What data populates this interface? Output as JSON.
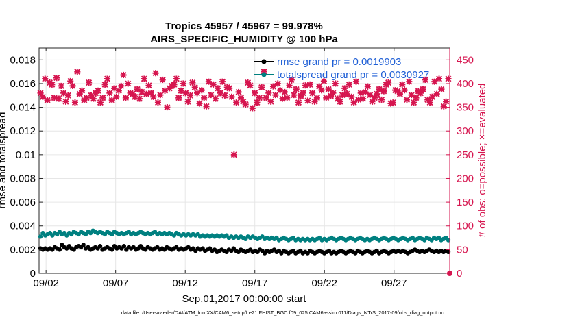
{
  "chart_data": {
    "type": "line",
    "title": "Tropics 45957 / 45967 = 99.978%",
    "subtitle": "AIRS_SPECIFIC_HUMIDITY @ 100 hPa",
    "xlabel": "Sep.01,2017 00:00:00 start",
    "ylabel": "rmse and totalspread",
    "ylabel_right": "# of obs: o=possible; ×=evaluated",
    "footnote": "data file: /Users/raeder/DAI/ATM_forcXX/CAM6_setup/f.e21.FHIST_BGC.f09_025.CAM6assim.011/Diags_NTrS_2017-09/obs_diag_output.nc",
    "xlim": [
      1.5,
      31.0
    ],
    "ylim": [
      0,
      0.019
    ],
    "ylim_right": [
      0,
      475
    ],
    "x_ticks": [
      2,
      7,
      12,
      17,
      22,
      27
    ],
    "x_tick_labels": [
      "09/02",
      "09/07",
      "09/12",
      "09/17",
      "09/22",
      "09/27"
    ],
    "y_ticks": [
      0,
      0.002,
      0.004,
      0.006,
      0.008,
      0.01,
      0.012,
      0.014,
      0.016,
      0.018
    ],
    "y_tick_labels": [
      "0",
      "0.002",
      "0.004",
      "0.006",
      "0.008",
      "0.01",
      "0.012",
      "0.014",
      "0.016",
      "0.018"
    ],
    "y_ticks_right": [
      0,
      50,
      100,
      150,
      200,
      250,
      300,
      350,
      400,
      450
    ],
    "y_tick_labels_right": [
      "0",
      "50",
      "100",
      "150",
      "200",
      "250",
      "300",
      "350",
      "400",
      "450"
    ],
    "grid": true,
    "legend_position": "top-right",
    "series": [
      {
        "name": "rmse grand pr = 0.0019903",
        "color": "#000000",
        "axis": "left",
        "marker": "circle",
        "values": [
          0.0021,
          0.002,
          0.0021,
          0.002,
          0.0021,
          0.002,
          0.0022,
          0.0021,
          0.002,
          0.0024,
          0.0022,
          0.0021,
          0.0023,
          0.0021,
          0.002,
          0.0022,
          0.0023,
          0.0022,
          0.0024,
          0.0021,
          0.0022,
          0.002,
          0.0021,
          0.0022,
          0.0021,
          0.0023,
          0.002,
          0.0021,
          0.0022,
          0.0021,
          0.002,
          0.0023,
          0.0021,
          0.0022,
          0.0021,
          0.0023,
          0.002,
          0.0022,
          0.0021,
          0.0022,
          0.002,
          0.0021,
          0.0023,
          0.0021,
          0.002,
          0.0022,
          0.0021,
          0.002,
          0.0021,
          0.0022,
          0.002,
          0.0021,
          0.002,
          0.0022,
          0.0021,
          0.002,
          0.0021,
          0.0022,
          0.002,
          0.0021,
          0.002,
          0.0021,
          0.0022,
          0.002,
          0.0021,
          0.0019,
          0.0021,
          0.002,
          0.0021,
          0.0019,
          0.002,
          0.0021,
          0.0019,
          0.002,
          0.0018,
          0.0019,
          0.002,
          0.0019,
          0.0018,
          0.002,
          0.0019,
          0.0021,
          0.0019,
          0.0018,
          0.002,
          0.0019,
          0.0018,
          0.0019,
          0.002,
          0.0018,
          0.0019,
          0.0018,
          0.002,
          0.0019,
          0.0017,
          0.0019,
          0.0018,
          0.0019,
          0.002,
          0.0018,
          0.0019,
          0.0017,
          0.0019,
          0.0018,
          0.0017,
          0.0018,
          0.0019,
          0.0017,
          0.0018,
          0.0019,
          0.0017,
          0.0018,
          0.0017,
          0.0019,
          0.0018,
          0.0017,
          0.0018,
          0.0019,
          0.0018,
          0.0017,
          0.0018,
          0.0019,
          0.0017,
          0.0018,
          0.0017,
          0.0018,
          0.0019,
          0.0018,
          0.0017,
          0.0018,
          0.0019,
          0.0018,
          0.0017,
          0.0019,
          0.0018,
          0.0017,
          0.0018,
          0.0019,
          0.0018,
          0.0017,
          0.0018,
          0.0019,
          0.0017,
          0.0018,
          0.0019,
          0.0018,
          0.0017,
          0.0018,
          0.0019,
          0.0018,
          0.0019,
          0.0018,
          0.0019,
          0.0018,
          0.0017,
          0.0018,
          0.0019,
          0.002,
          0.0019,
          0.0018,
          0.0019,
          0.0018,
          0.0019,
          0.002,
          0.0019,
          0.0018,
          0.0019,
          0.0018,
          0.0019,
          0.0018,
          0.0019,
          0.0018
        ]
      },
      {
        "name": "totalspread grand pr = 0.0030927",
        "color": "#008080",
        "axis": "left",
        "marker": "circle",
        "values": [
          0.0031,
          0.0034,
          0.0032,
          0.0033,
          0.0034,
          0.0032,
          0.0034,
          0.0033,
          0.0035,
          0.0033,
          0.0034,
          0.0032,
          0.0034,
          0.0033,
          0.0035,
          0.0034,
          0.0033,
          0.0035,
          0.0034,
          0.0033,
          0.0035,
          0.0034,
          0.0036,
          0.0035,
          0.0034,
          0.0035,
          0.0034,
          0.0033,
          0.0035,
          0.0034,
          0.0033,
          0.0035,
          0.0034,
          0.0033,
          0.0034,
          0.0033,
          0.0034,
          0.0035,
          0.0033,
          0.0034,
          0.0033,
          0.0034,
          0.0035,
          0.0034,
          0.0033,
          0.0034,
          0.0033,
          0.0034,
          0.0035,
          0.0033,
          0.0034,
          0.0033,
          0.0034,
          0.0033,
          0.0034,
          0.0033,
          0.0032,
          0.0034,
          0.0033,
          0.0032,
          0.0033,
          0.0032,
          0.0033,
          0.0032,
          0.0033,
          0.0032,
          0.0033,
          0.0031,
          0.0032,
          0.0031,
          0.0032,
          0.0031,
          0.0032,
          0.0031,
          0.0032,
          0.0031,
          0.0032,
          0.0031,
          0.0032,
          0.003,
          0.0031,
          0.003,
          0.0031,
          0.003,
          0.0031,
          0.003,
          0.0029,
          0.0031,
          0.003,
          0.0031,
          0.003,
          0.0029,
          0.003,
          0.0031,
          0.0029,
          0.003,
          0.0029,
          0.003,
          0.0029,
          0.003,
          0.0028,
          0.0029,
          0.003,
          0.0029,
          0.0028,
          0.0029,
          0.003,
          0.0028,
          0.0029,
          0.0028,
          0.0029,
          0.0028,
          0.0029,
          0.0028,
          0.0029,
          0.0028,
          0.0029,
          0.003,
          0.0028,
          0.0029,
          0.0028,
          0.0029,
          0.003,
          0.0029,
          0.0028,
          0.0029,
          0.003,
          0.0029,
          0.0028,
          0.0029,
          0.003,
          0.0029,
          0.0028,
          0.0029,
          0.003,
          0.0029,
          0.0028,
          0.0029,
          0.0028,
          0.0029,
          0.003,
          0.0029,
          0.0028,
          0.0029,
          0.003,
          0.0029,
          0.0028,
          0.0029,
          0.003,
          0.0029,
          0.0028,
          0.0029,
          0.003,
          0.0029,
          0.0028,
          0.0029,
          0.003,
          0.0028,
          0.0029,
          0.003,
          0.0029,
          0.0028,
          0.003,
          0.0029,
          0.0028,
          0.003,
          0.0029,
          0.003,
          0.0028,
          0.0029,
          0.003,
          0.0028
        ]
      },
      {
        "name": "# of obs evaluated",
        "color": "#d6154f",
        "axis": "right",
        "marker": "x",
        "values": [
          380,
          372,
          410,
          365,
          402,
          398,
          370,
          412,
          368,
          395,
          380,
          362,
          375,
          405,
          395,
          360,
          425,
          378,
          385,
          365,
          370,
          402,
          375,
          368,
          380,
          385,
          360,
          370,
          398,
          410,
          380,
          365,
          390,
          372,
          385,
          395,
          418,
          370,
          400,
          380,
          378,
          372,
          388,
          368,
          382,
          410,
          378,
          396,
          380,
          372,
          422,
          360,
          376,
          408,
          385,
          350,
          390,
          395,
          398,
          410,
          370,
          385,
          400,
          380,
          362,
          375,
          402,
          392,
          380,
          358,
          386,
          370,
          352,
          404,
          376,
          398,
          368,
          390,
          380,
          404,
          375,
          392,
          390,
          372,
          250,
          360,
          382,
          370,
          362,
          356,
          402,
          396,
          348,
          380,
          360,
          370,
          392,
          425,
          370,
          380,
          362,
          394,
          376,
          400,
          386,
          368,
          382,
          370,
          396,
          408,
          376,
          388,
          360,
          374,
          380,
          396,
          364,
          398,
          380,
          362,
          370,
          394,
          386,
          405,
          370,
          388,
          374,
          380,
          400,
          368,
          362,
          376,
          390,
          378,
          398,
          372,
          360,
          404,
          366,
          380,
          368,
          382,
          394,
          376,
          362,
          370,
          378,
          388,
          366,
          384,
          398,
          402,
          358,
          360,
          386,
          384,
          378,
          398,
          386,
          366,
          404,
          376,
          360,
          370,
          384,
          380,
          388,
          408,
          366,
          360,
          372,
          404,
          378,
          410,
          388,
          352,
          362,
          410
        ]
      }
    ]
  }
}
